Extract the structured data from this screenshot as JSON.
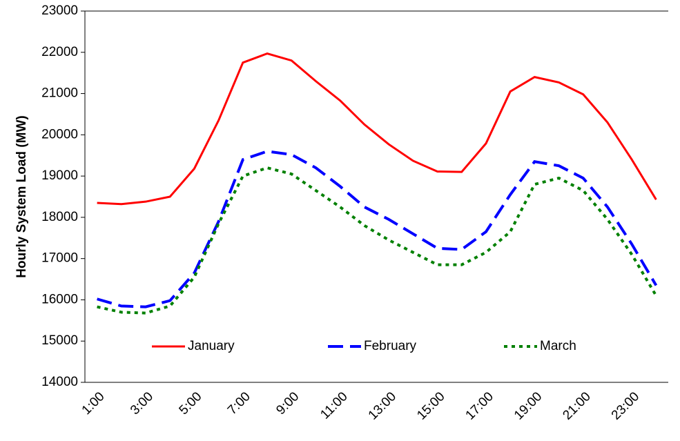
{
  "chart_data": {
    "type": "line",
    "y_label": "Hourly System Load (MW)",
    "categories": [
      "1:00",
      null,
      "3:00",
      null,
      "5:00",
      null,
      "7:00",
      null,
      "9:00",
      null,
      "11:00",
      null,
      "13:00",
      null,
      "15:00",
      null,
      "17:00",
      null,
      "19:00",
      null,
      "21:00",
      null,
      "23:00",
      null
    ],
    "series": [
      {
        "name": "January",
        "color": "#ff0000",
        "dash": "solid",
        "values": [
          18350,
          18320,
          18380,
          18500,
          19180,
          20350,
          21750,
          21970,
          21800,
          21300,
          20830,
          20250,
          19770,
          19370,
          19110,
          19100,
          19790,
          21050,
          21400,
          21270,
          20980,
          20300,
          19400,
          18430
        ]
      },
      {
        "name": "February",
        "color": "#0000ff",
        "dash": "long",
        "values": [
          16020,
          15850,
          15830,
          15980,
          16650,
          17900,
          19400,
          19600,
          19520,
          19200,
          18750,
          18250,
          17950,
          17600,
          17250,
          17220,
          17650,
          18550,
          19350,
          19250,
          18950,
          18250,
          17350,
          16350
        ]
      },
      {
        "name": "March",
        "color": "#008000",
        "dash": "dot",
        "values": [
          15830,
          15700,
          15680,
          15850,
          16550,
          17850,
          19000,
          19200,
          19050,
          18650,
          18250,
          17800,
          17450,
          17150,
          16850,
          16850,
          17150,
          17650,
          18800,
          18950,
          18650,
          17950,
          17100,
          16100
        ]
      }
    ],
    "ylim": [
      14000,
      23000
    ],
    "yticks": [
      14000,
      15000,
      16000,
      17000,
      18000,
      19000,
      20000,
      21000,
      22000,
      23000
    ],
    "legend": "bottom"
  }
}
